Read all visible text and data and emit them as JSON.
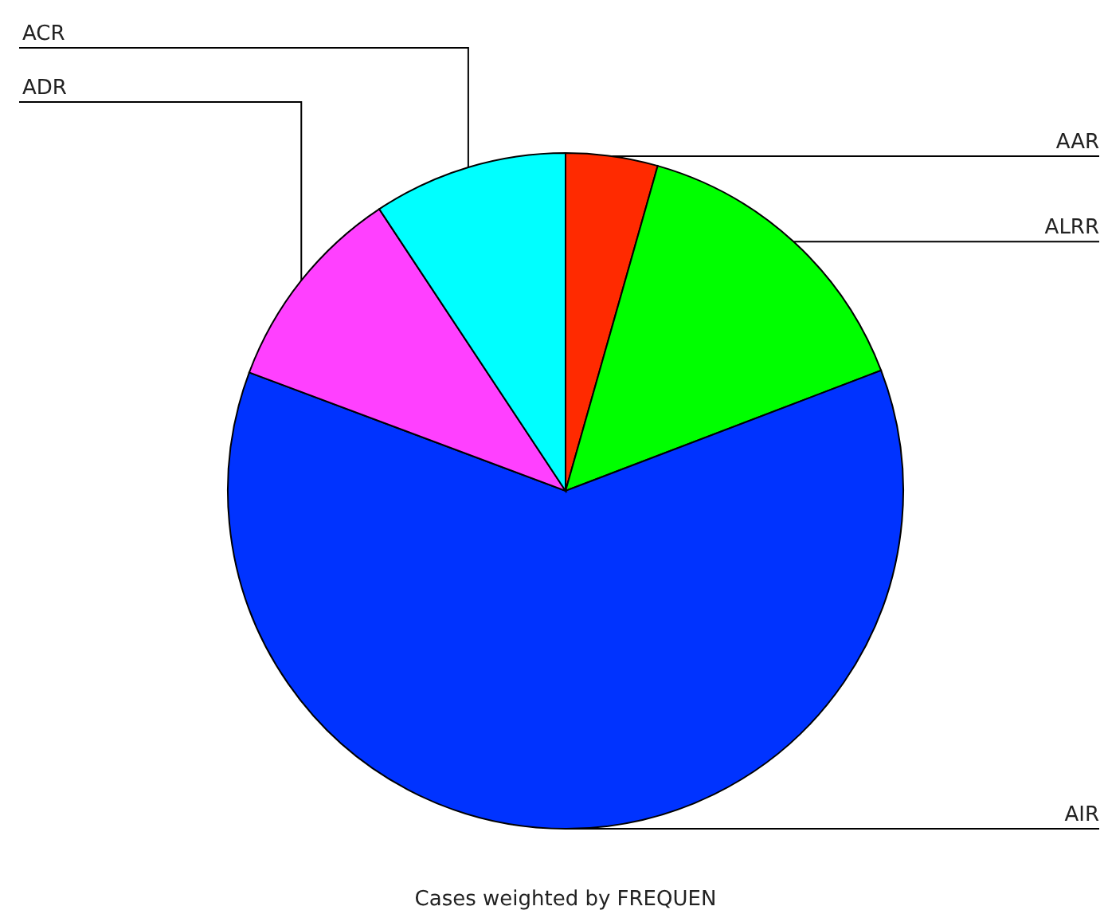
{
  "chart_data": {
    "type": "pie",
    "categories": [
      "AAR",
      "ALRR",
      "AIR",
      "ADR",
      "ACR"
    ],
    "values": [
      4.4,
      14.8,
      61.5,
      10,
      9.3
    ],
    "colors": [
      "#ff2a00",
      "#00ff00",
      "#0033ff",
      "#ff40ff",
      "#00ffff"
    ],
    "annotations": [
      "Cases weighted by FREQUEN"
    ],
    "legend": false
  }
}
